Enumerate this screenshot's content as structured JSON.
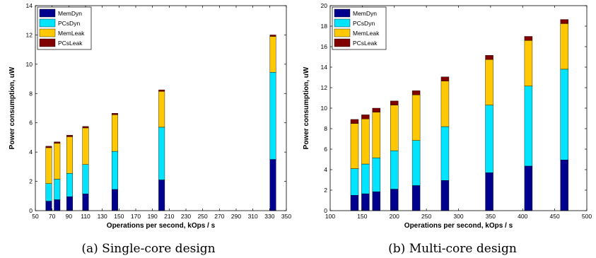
{
  "captions": [
    "(a) Single-core design",
    "(b) Multi-core design"
  ],
  "colors": {
    "MemDyn": "#00008f",
    "PCsDyn": "#00e4ff",
    "MemLeak": "#ffc800",
    "PCsLeak": "#800000"
  },
  "chart_data": [
    {
      "type": "bar",
      "stacked": true,
      "xlabel": "Operations per second, kOps / s",
      "ylabel": "Power consumption, uW",
      "xlim": [
        50,
        350
      ],
      "ylim": [
        0,
        14
      ],
      "xticks": [
        50,
        70,
        90,
        110,
        130,
        150,
        170,
        190,
        210,
        230,
        250,
        270,
        290,
        310,
        330,
        350
      ],
      "yticks": [
        0,
        2,
        4,
        6,
        8,
        10,
        12,
        14
      ],
      "x": [
        66,
        76,
        91,
        110,
        145,
        201,
        334
      ],
      "legend_position": "top-left",
      "series": [
        {
          "name": "MemDyn",
          "values": [
            0.65,
            0.75,
            0.95,
            1.15,
            1.45,
            2.1,
            3.5
          ]
        },
        {
          "name": "PCsDyn",
          "values": [
            1.2,
            1.4,
            1.6,
            2.0,
            2.6,
            3.6,
            5.95
          ]
        },
        {
          "name": "MemLeak",
          "values": [
            2.45,
            2.45,
            2.5,
            2.5,
            2.5,
            2.45,
            2.45
          ]
        },
        {
          "name": "PCsLeak",
          "values": [
            0.1,
            0.1,
            0.1,
            0.1,
            0.1,
            0.1,
            0.1
          ]
        }
      ]
    },
    {
      "type": "bar",
      "stacked": true,
      "xlabel": "Operations per second, kOps / s",
      "ylabel": "Power consumption, uW",
      "xlim": [
        100,
        500
      ],
      "ylim": [
        0,
        20
      ],
      "xticks": [
        100,
        150,
        200,
        250,
        300,
        350,
        400,
        450,
        500
      ],
      "yticks": [
        0,
        2,
        4,
        6,
        8,
        10,
        12,
        14,
        16,
        18,
        20
      ],
      "x": [
        138,
        155,
        172,
        200,
        234,
        279,
        348,
        409,
        465
      ],
      "legend_position": "top-left",
      "series": [
        {
          "name": "MemDyn",
          "values": [
            1.5,
            1.65,
            1.85,
            2.1,
            2.45,
            2.95,
            3.7,
            4.35,
            4.95
          ]
        },
        {
          "name": "PCsDyn",
          "values": [
            2.6,
            2.9,
            3.3,
            3.75,
            4.4,
            5.25,
            6.6,
            7.8,
            8.85
          ]
        },
        {
          "name": "MemLeak",
          "values": [
            4.4,
            4.4,
            4.45,
            4.45,
            4.45,
            4.45,
            4.45,
            4.45,
            4.45
          ]
        },
        {
          "name": "PCsLeak",
          "values": [
            0.4,
            0.4,
            0.4,
            0.4,
            0.4,
            0.4,
            0.4,
            0.4,
            0.4
          ]
        }
      ]
    }
  ]
}
